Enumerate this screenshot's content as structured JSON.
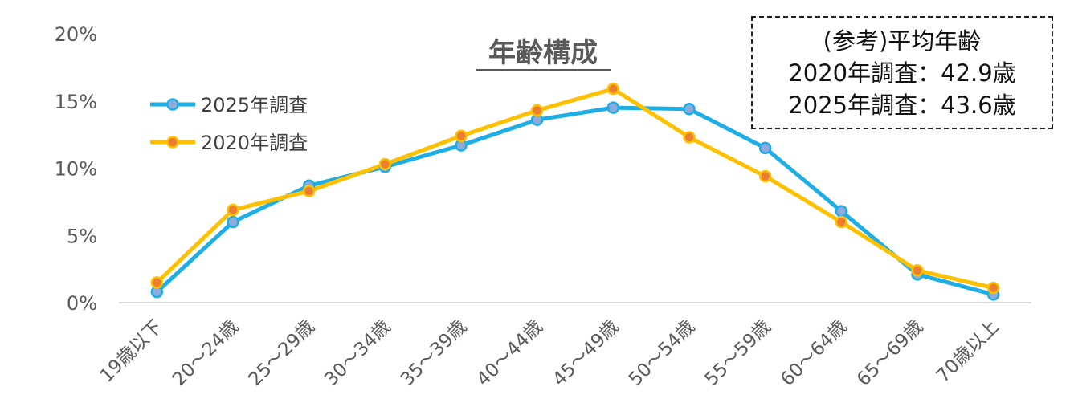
{
  "chart_data": {
    "type": "line",
    "title": "年齢構成",
    "categories": [
      "19歳以下",
      "20～24歳",
      "25～29歳",
      "30～34歳",
      "35～39歳",
      "40～44歳",
      "45～49歳",
      "50～54歳",
      "55～59歳",
      "60～64歳",
      "65～69歳",
      "70歳以上"
    ],
    "y_ticks": [
      "0%",
      "5%",
      "10%",
      "15%",
      "20%"
    ],
    "ylim": [
      0,
      20
    ],
    "grid": false,
    "legend_position": "top-left",
    "series": [
      {
        "name": "2025年調査",
        "color": "#1EAEE6",
        "marker_color": "#8FAADC",
        "values": [
          0.8,
          6.0,
          8.7,
          10.1,
          11.7,
          13.6,
          14.5,
          14.4,
          11.5,
          6.8,
          2.1,
          0.6
        ]
      },
      {
        "name": "2020年調査",
        "color": "#FFC000",
        "marker_color": "#ED7D31",
        "values": [
          1.5,
          6.9,
          8.3,
          10.3,
          12.4,
          14.3,
          15.9,
          12.3,
          9.4,
          6.0,
          2.4,
          1.1
        ]
      }
    ]
  },
  "note": {
    "line1": "(参考)平均年齢",
    "line2": "2020年調査：42.9歳",
    "line3": "2025年調査：43.6歳"
  }
}
